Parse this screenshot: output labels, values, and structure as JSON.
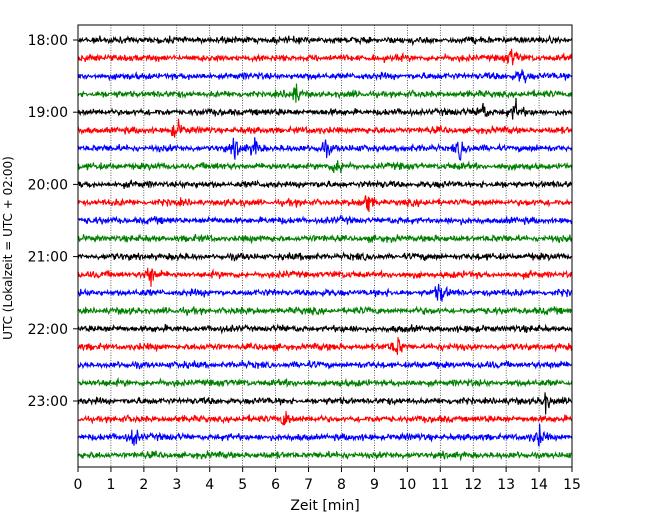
{
  "chart_data": {
    "type": "line",
    "subtype": "helicorder",
    "xlabel": "Zeit  [min]",
    "ylabel": "UTC (Lokalzeit = UTC + 02:00)",
    "xlim": [
      0,
      15
    ],
    "x_ticks": [
      "0",
      "1",
      "2",
      "3",
      "4",
      "5",
      "6",
      "7",
      "8",
      "9",
      "10",
      "11",
      "12",
      "13",
      "14",
      "15"
    ],
    "y_tick_labels": [
      "18:00",
      "19:00",
      "20:00",
      "21:00",
      "22:00",
      "23:00"
    ],
    "grid": "vertical dotted lines at each minute",
    "trace_colors": [
      "#000000",
      "#ff0000",
      "#0000ff",
      "#008000"
    ],
    "traces": [
      {
        "start": "18:00",
        "color": "#000000"
      },
      {
        "start": "18:15",
        "color": "#ff0000"
      },
      {
        "start": "18:30",
        "color": "#0000ff"
      },
      {
        "start": "18:45",
        "color": "#008000"
      },
      {
        "start": "19:00",
        "color": "#000000"
      },
      {
        "start": "19:15",
        "color": "#ff0000"
      },
      {
        "start": "19:30",
        "color": "#0000ff"
      },
      {
        "start": "19:45",
        "color": "#008000"
      },
      {
        "start": "20:00",
        "color": "#000000"
      },
      {
        "start": "20:15",
        "color": "#ff0000"
      },
      {
        "start": "20:30",
        "color": "#0000ff"
      },
      {
        "start": "20:45",
        "color": "#008000"
      },
      {
        "start": "21:00",
        "color": "#000000"
      },
      {
        "start": "21:15",
        "color": "#ff0000"
      },
      {
        "start": "21:30",
        "color": "#0000ff"
      },
      {
        "start": "21:45",
        "color": "#008000"
      },
      {
        "start": "22:00",
        "color": "#000000"
      },
      {
        "start": "22:15",
        "color": "#ff0000"
      },
      {
        "start": "22:30",
        "color": "#0000ff"
      },
      {
        "start": "22:45",
        "color": "#008000"
      },
      {
        "start": "23:00",
        "color": "#000000"
      },
      {
        "start": "23:15",
        "color": "#ff0000"
      },
      {
        "start": "23:30",
        "color": "#0000ff"
      },
      {
        "start": "23:45",
        "color": "#008000"
      }
    ],
    "notable_events": [
      {
        "start": "18:15",
        "minute": 13.2
      },
      {
        "start": "18:30",
        "minute": 13.5
      },
      {
        "start": "18:45",
        "minute": 6.6
      },
      {
        "start": "19:00",
        "minute": 13.3
      },
      {
        "start": "19:00",
        "minute": 12.3
      },
      {
        "start": "19:15",
        "minute": 3.0
      },
      {
        "start": "19:30",
        "minute": 11.6
      },
      {
        "start": "19:30",
        "minute": 4.8
      },
      {
        "start": "19:30",
        "minute": 5.4
      },
      {
        "start": "19:30",
        "minute": 7.5
      },
      {
        "start": "19:45",
        "minute": 7.9
      },
      {
        "start": "20:15",
        "minute": 8.8
      },
      {
        "start": "21:15",
        "minute": 2.2
      },
      {
        "start": "21:30",
        "minute": 11.0
      },
      {
        "start": "22:15",
        "minute": 9.7
      },
      {
        "start": "23:00",
        "minute": 14.2
      },
      {
        "start": "23:15",
        "minute": 6.3
      },
      {
        "start": "23:30",
        "minute": 1.7
      },
      {
        "start": "23:30",
        "minute": 14.0
      }
    ]
  }
}
